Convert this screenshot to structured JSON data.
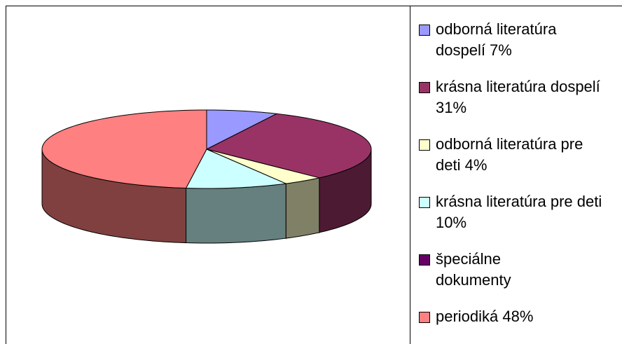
{
  "chart_data": {
    "type": "pie3d",
    "categories": [
      "odborná literatúra dospelí 7%",
      "krásna literatúra dospelí 31%",
      "odborná literatúra pre deti 4%",
      "krásna literatúra pre deti 10%",
      "špeciálne dokumenty",
      "periodiká 48%"
    ],
    "values": [
      7,
      31,
      4,
      10,
      0,
      48
    ],
    "colors": [
      "#9999ff",
      "#993366",
      "#ffffcc",
      "#ccffff",
      "#660066",
      "#ff8080"
    ],
    "legend": "right"
  }
}
